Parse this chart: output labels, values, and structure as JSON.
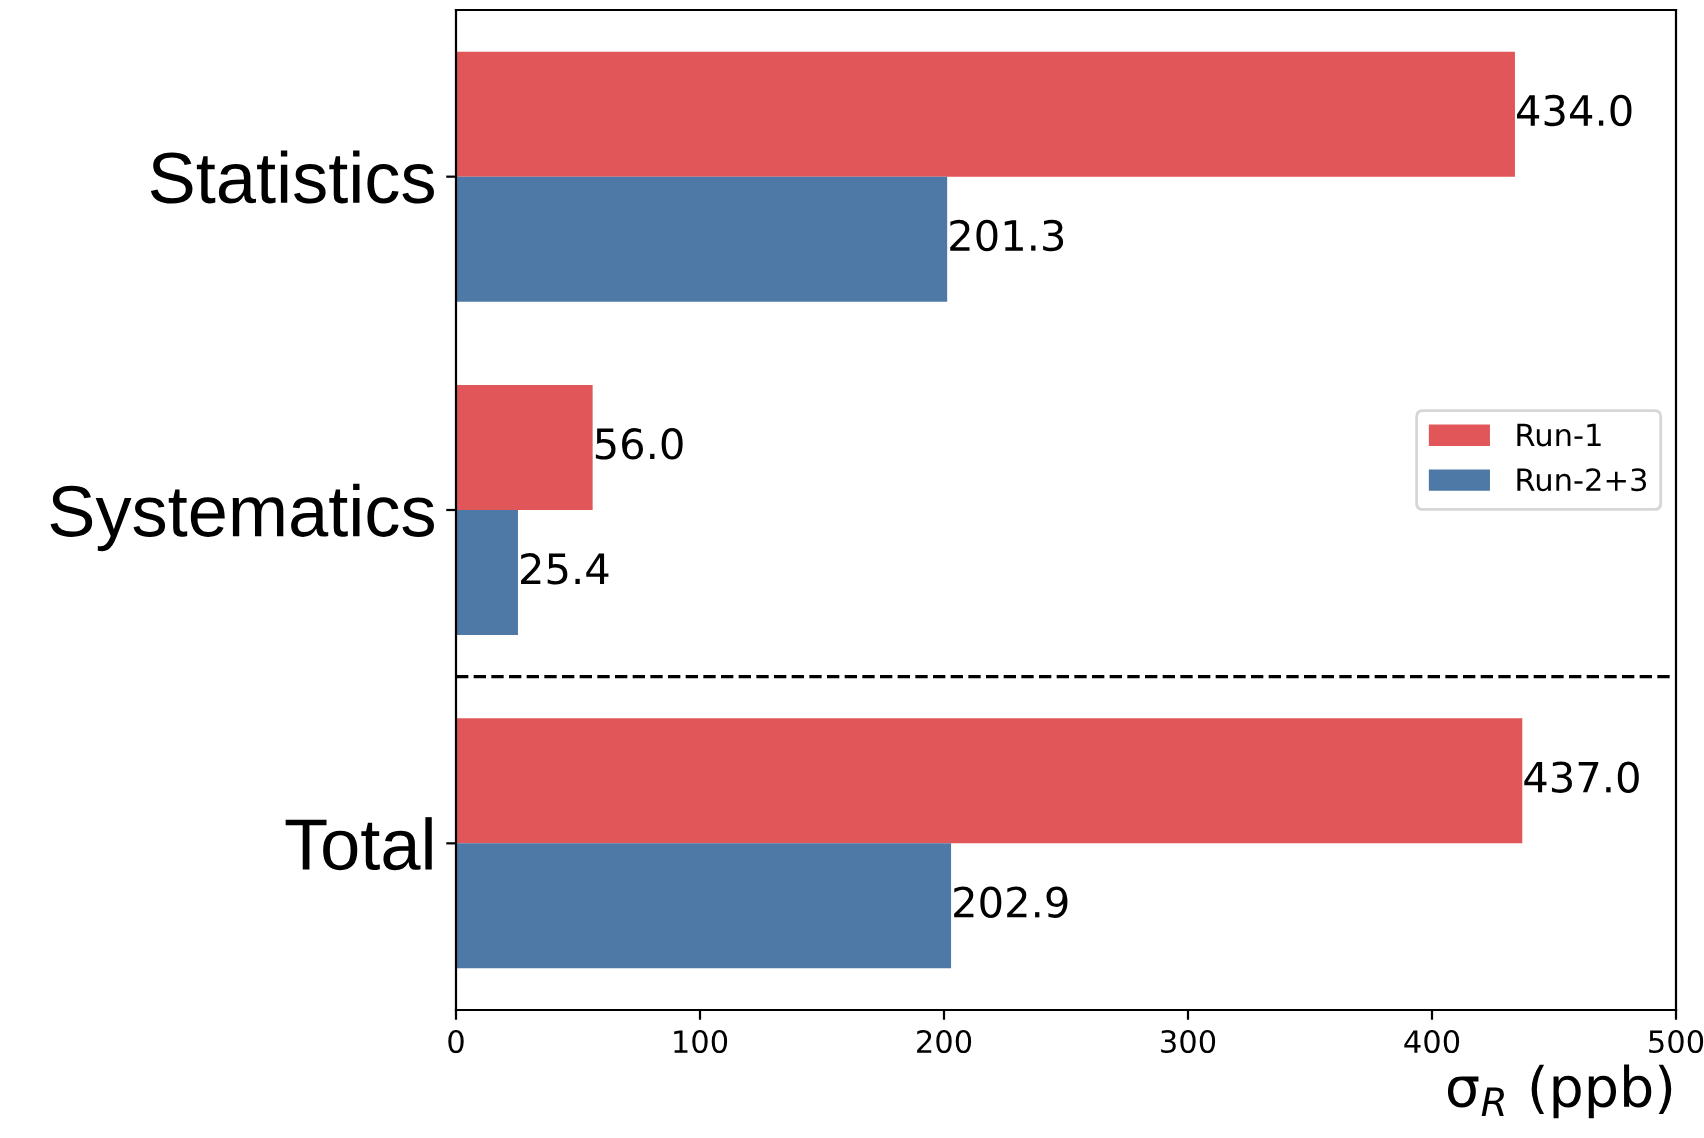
{
  "chart_data": {
    "type": "bar",
    "orientation": "horizontal",
    "categories": [
      "Statistics",
      "Systematics",
      "Total"
    ],
    "series": [
      {
        "name": "Run-1",
        "color": "#e15759",
        "values": [
          434.0,
          56.0,
          437.0
        ],
        "value_labels": [
          "434.0",
          "56.0",
          "437.0"
        ]
      },
      {
        "name": "Run-2+3",
        "color": "#4e79a7",
        "values": [
          201.3,
          25.4,
          202.9
        ],
        "value_labels": [
          "201.3",
          "25.4",
          "202.9"
        ]
      }
    ],
    "xlabel": "σ$_{R}$ (ppb)",
    "xlim": [
      0,
      500
    ],
    "xticks": [
      0,
      100,
      200,
      300,
      400,
      500
    ],
    "legend": "right",
    "grid": false
  }
}
